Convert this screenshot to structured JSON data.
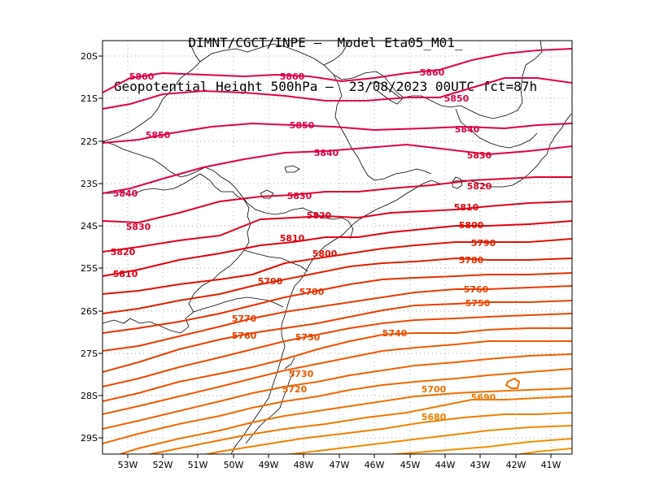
{
  "title": {
    "line1": "DIMNT/CGCT/INPE –  Model Eta05_M01_",
    "line2": "Geopotential Height 500hPa –  23/08/2023 00UTC fct=87h"
  },
  "axes": {
    "lat_labels": [
      "20S",
      "21S",
      "22S",
      "23S",
      "24S",
      "25S",
      "26S",
      "27S",
      "28S",
      "29S"
    ],
    "lon_labels": [
      "53W",
      "52W",
      "51W",
      "50W",
      "49W",
      "48W",
      "47W",
      "46W",
      "45W",
      "44W",
      "43W",
      "42W",
      "41W"
    ]
  },
  "contour_labels": [
    {
      "text": "5860",
      "color": "#e0004a"
    },
    {
      "text": "5860",
      "color": "#e0004a"
    },
    {
      "text": "5860",
      "color": "#e0004a"
    },
    {
      "text": "5850",
      "color": "#e0004a"
    },
    {
      "text": "5850",
      "color": "#e0004a"
    },
    {
      "text": "5850",
      "color": "#e0004a"
    },
    {
      "text": "5840",
      "color": "#e0004a"
    },
    {
      "text": "5840",
      "color": "#e0004a"
    },
    {
      "text": "5840",
      "color": "#e0004a"
    },
    {
      "text": "5830",
      "color": "#e00030"
    },
    {
      "text": "5830",
      "color": "#e00030"
    },
    {
      "text": "5830",
      "color": "#e00030"
    },
    {
      "text": "5820",
      "color": "#e00020"
    },
    {
      "text": "5820",
      "color": "#e00020"
    },
    {
      "text": "5820",
      "color": "#e00020"
    },
    {
      "text": "5810",
      "color": "#e00010"
    },
    {
      "text": "5810",
      "color": "#e00010"
    },
    {
      "text": "5810",
      "color": "#e00010"
    },
    {
      "text": "5800",
      "color": "#e01000"
    },
    {
      "text": "5800",
      "color": "#e01000"
    },
    {
      "text": "5790",
      "color": "#e02000"
    },
    {
      "text": "5790",
      "color": "#e02000"
    },
    {
      "text": "5780",
      "color": "#e83000"
    },
    {
      "text": "5780",
      "color": "#e83000"
    },
    {
      "text": "5770",
      "color": "#e83a00"
    },
    {
      "text": "5760",
      "color": "#e84000"
    },
    {
      "text": "5760",
      "color": "#e84000"
    },
    {
      "text": "5750",
      "color": "#ee4800"
    },
    {
      "text": "5750",
      "color": "#ee4800"
    },
    {
      "text": "5740",
      "color": "#ee5000"
    },
    {
      "text": "5730",
      "color": "#f05800"
    },
    {
      "text": "5720",
      "color": "#f06000"
    },
    {
      "text": "5700",
      "color": "#f07000"
    },
    {
      "text": "5690",
      "color": "#f07800"
    },
    {
      "text": "5680",
      "color": "#f08000"
    }
  ],
  "colors": {
    "contour_high": "#e0004a",
    "contour_low": "#f08000",
    "coastline": "#000000",
    "grid": "#aaaaaa"
  }
}
